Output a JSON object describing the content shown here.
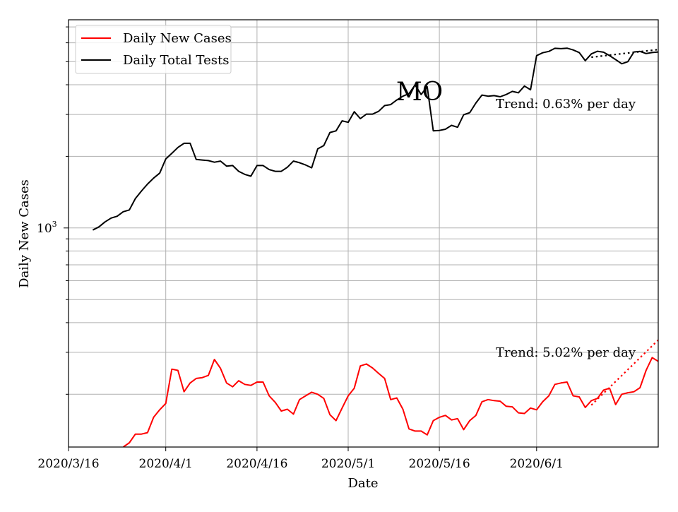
{
  "chart_data": {
    "type": "line",
    "title": "MO",
    "xlabel": "Date",
    "ylabel": "Daily New Cases",
    "yscale": "log",
    "ylim": [
      120,
      7500
    ],
    "xlim": [
      "2020-03-16",
      "2020-06-21"
    ],
    "x_ticks": [
      "2020/3/16",
      "2020/4/1",
      "2020/4/16",
      "2020/5/1",
      "2020/5/16",
      "2020/6/1"
    ],
    "y_tick_label": {
      "base": "10",
      "exp": "3"
    },
    "grid": true,
    "legend_position": "top-left",
    "colors": {
      "cases": "#ff0000",
      "tests": "#000000",
      "grid": "#b0b0b0"
    },
    "series": [
      {
        "name": "Daily New Cases",
        "color": "#ff0000",
        "start_date": "2020-03-25",
        "values": [
          120,
          125,
          136,
          136,
          138,
          160,
          172,
          183,
          255,
          252,
          205,
          223,
          233,
          235,
          240,
          280,
          257,
          223,
          215,
          228,
          220,
          218,
          225,
          225,
          197,
          185,
          170,
          173,
          165,
          190,
          197,
          204,
          200,
          192,
          164,
          155,
          175,
          197,
          212,
          263,
          268,
          258,
          245,
          233,
          190,
          193,
          173,
          143,
          140,
          140,
          135,
          155,
          160,
          163,
          156,
          158,
          142,
          155,
          163,
          186,
          190,
          188,
          187,
          178,
          177,
          167,
          166,
          175,
          172,
          186,
          197,
          220,
          223,
          225,
          197,
          195,
          176,
          188,
          192,
          208,
          212,
          181,
          200,
          203,
          205,
          213,
          252,
          285,
          275,
          240,
          310,
          330,
          325,
          400
        ]
      },
      {
        "name": "Daily Total Tests",
        "color": "#000000",
        "start_date": "2020-03-20",
        "values": [
          980,
          1010,
          1060,
          1100,
          1120,
          1170,
          1190,
          1330,
          1430,
          1530,
          1620,
          1700,
          1950,
          2060,
          2180,
          2270,
          2270,
          1940,
          1930,
          1920,
          1890,
          1910,
          1820,
          1830,
          1730,
          1680,
          1650,
          1830,
          1830,
          1760,
          1730,
          1730,
          1800,
          1910,
          1880,
          1840,
          1790,
          2150,
          2220,
          2520,
          2560,
          2820,
          2780,
          3080,
          2880,
          3010,
          3010,
          3090,
          3270,
          3300,
          3450,
          3580,
          3670,
          3990,
          3640,
          3920,
          2560,
          2570,
          2600,
          2700,
          2650,
          2990,
          3050,
          3350,
          3620,
          3580,
          3600,
          3560,
          3640,
          3750,
          3700,
          3950,
          3810,
          5300,
          5450,
          5520,
          5690,
          5670,
          5700,
          5600,
          5460,
          5050,
          5390,
          5530,
          5480,
          5300,
          5100,
          4900,
          5000,
          5490,
          5520,
          5410,
          5460,
          5490,
          5590,
          5750
        ]
      }
    ],
    "trends": [
      {
        "series": "Daily Total Tests",
        "label": "Trend: 0.63% per day",
        "start_date": "2020-06-10",
        "end_date": "2020-06-21",
        "start_value": 5220,
        "end_value": 5620
      },
      {
        "series": "Daily New Cases",
        "label": "Trend: 5.02% per day",
        "start_date": "2020-06-10",
        "end_date": "2020-06-21",
        "start_value": 180,
        "end_value": 338
      }
    ]
  }
}
